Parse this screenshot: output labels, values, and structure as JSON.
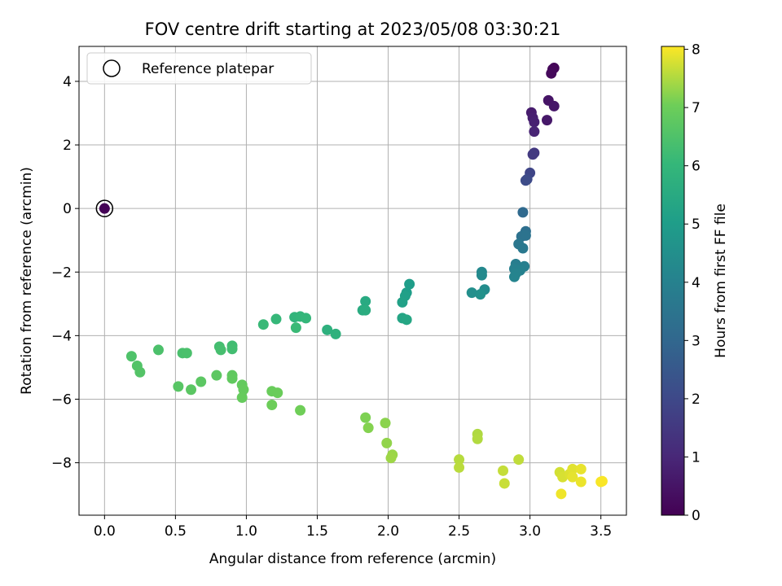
{
  "chart_data": {
    "type": "scatter",
    "title": "FOV centre drift starting at 2023/05/08 03:30:21",
    "xlabel": "Angular distance from reference (arcmin)",
    "ylabel": "Rotation from reference (arcmin)",
    "xlim": [
      -0.18,
      3.68
    ],
    "ylim": [
      -9.65,
      5.1
    ],
    "xticks": [
      "0.0",
      "0.5",
      "1.0",
      "1.5",
      "2.0",
      "2.5",
      "3.0",
      "3.5"
    ],
    "yticks": [
      "4",
      "2",
      "0",
      "−2",
      "−4",
      "−6",
      "−8"
    ],
    "grid": true,
    "legend": {
      "placement": "top-left",
      "entries": [
        "Reference platepar"
      ]
    },
    "colorbar": {
      "label": "Hours from first FF file",
      "min": 0,
      "max": 8.05,
      "ticks": [
        "0",
        "1",
        "2",
        "3",
        "4",
        "5",
        "6",
        "7",
        "8"
      ],
      "colormap": "viridis"
    },
    "reference_point": {
      "x": 0.0,
      "y": 0.0
    },
    "points": [
      {
        "x": 0.0,
        "y": 0.0,
        "h": 0.05
      },
      {
        "x": 3.17,
        "y": 4.42,
        "h": 0.1
      },
      {
        "x": 3.16,
        "y": 4.38,
        "h": 0.15
      },
      {
        "x": 3.15,
        "y": 4.25,
        "h": 0.2
      },
      {
        "x": 3.13,
        "y": 3.4,
        "h": 0.5
      },
      {
        "x": 3.17,
        "y": 3.22,
        "h": 0.55
      },
      {
        "x": 3.12,
        "y": 2.78,
        "h": 0.6
      },
      {
        "x": 3.01,
        "y": 3.02,
        "h": 0.7
      },
      {
        "x": 3.02,
        "y": 2.85,
        "h": 0.75
      },
      {
        "x": 3.03,
        "y": 2.72,
        "h": 0.8
      },
      {
        "x": 3.03,
        "y": 2.42,
        "h": 0.9
      },
      {
        "x": 3.03,
        "y": 1.75,
        "h": 1.5
      },
      {
        "x": 3.02,
        "y": 1.7,
        "h": 1.55
      },
      {
        "x": 3.0,
        "y": 1.12,
        "h": 1.9
      },
      {
        "x": 2.98,
        "y": 0.92,
        "h": 2.0
      },
      {
        "x": 2.97,
        "y": 0.88,
        "h": 2.1
      },
      {
        "x": 2.95,
        "y": -0.12,
        "h": 3.1
      },
      {
        "x": 2.97,
        "y": -0.72,
        "h": 3.3
      },
      {
        "x": 2.96,
        "y": -0.82,
        "h": 3.35
      },
      {
        "x": 2.94,
        "y": -0.88,
        "h": 3.4
      },
      {
        "x": 2.97,
        "y": -0.85,
        "h": 3.45
      },
      {
        "x": 2.92,
        "y": -1.12,
        "h": 3.6
      },
      {
        "x": 2.95,
        "y": -1.25,
        "h": 3.65
      },
      {
        "x": 2.9,
        "y": -1.75,
        "h": 3.85
      },
      {
        "x": 2.96,
        "y": -1.82,
        "h": 3.9
      },
      {
        "x": 2.89,
        "y": -1.9,
        "h": 3.95
      },
      {
        "x": 2.93,
        "y": -1.95,
        "h": 4.0
      },
      {
        "x": 2.9,
        "y": -2.05,
        "h": 4.05
      },
      {
        "x": 2.89,
        "y": -2.15,
        "h": 4.1
      },
      {
        "x": 2.66,
        "y": -2.0,
        "h": 4.25
      },
      {
        "x": 2.66,
        "y": -2.1,
        "h": 4.3
      },
      {
        "x": 2.68,
        "y": -2.55,
        "h": 4.4
      },
      {
        "x": 2.59,
        "y": -2.65,
        "h": 4.5
      },
      {
        "x": 2.65,
        "y": -2.7,
        "h": 4.55
      },
      {
        "x": 2.15,
        "y": -2.38,
        "h": 5.0
      },
      {
        "x": 2.13,
        "y": -2.65,
        "h": 5.05
      },
      {
        "x": 2.12,
        "y": -2.75,
        "h": 5.1
      },
      {
        "x": 2.1,
        "y": -2.95,
        "h": 5.15
      },
      {
        "x": 2.1,
        "y": -3.45,
        "h": 5.3
      },
      {
        "x": 2.13,
        "y": -3.5,
        "h": 5.35
      },
      {
        "x": 1.84,
        "y": -2.92,
        "h": 5.5
      },
      {
        "x": 1.82,
        "y": -3.2,
        "h": 5.55
      },
      {
        "x": 1.84,
        "y": -3.2,
        "h": 5.6
      },
      {
        "x": 1.57,
        "y": -3.82,
        "h": 5.75
      },
      {
        "x": 1.63,
        "y": -3.95,
        "h": 5.8
      },
      {
        "x": 1.34,
        "y": -3.42,
        "h": 5.9
      },
      {
        "x": 1.38,
        "y": -3.4,
        "h": 5.95
      },
      {
        "x": 1.42,
        "y": -3.45,
        "h": 6.0
      },
      {
        "x": 1.21,
        "y": -3.48,
        "h": 6.05
      },
      {
        "x": 1.12,
        "y": -3.65,
        "h": 6.1
      },
      {
        "x": 1.35,
        "y": -3.75,
        "h": 6.12
      },
      {
        "x": 0.9,
        "y": -4.32,
        "h": 6.25
      },
      {
        "x": 0.9,
        "y": -4.42,
        "h": 6.28
      },
      {
        "x": 0.81,
        "y": -4.35,
        "h": 6.3
      },
      {
        "x": 0.82,
        "y": -4.45,
        "h": 6.35
      },
      {
        "x": 0.55,
        "y": -4.55,
        "h": 6.4
      },
      {
        "x": 0.58,
        "y": -4.55,
        "h": 6.42
      },
      {
        "x": 0.38,
        "y": -4.45,
        "h": 6.45
      },
      {
        "x": 0.19,
        "y": -4.65,
        "h": 6.5
      },
      {
        "x": 0.23,
        "y": -4.95,
        "h": 6.55
      },
      {
        "x": 0.25,
        "y": -5.15,
        "h": 6.58
      },
      {
        "x": 0.52,
        "y": -5.6,
        "h": 6.65
      },
      {
        "x": 0.61,
        "y": -5.7,
        "h": 6.7
      },
      {
        "x": 0.68,
        "y": -5.45,
        "h": 6.72
      },
      {
        "x": 0.79,
        "y": -5.25,
        "h": 6.75
      },
      {
        "x": 0.9,
        "y": -5.25,
        "h": 6.8
      },
      {
        "x": 0.9,
        "y": -5.35,
        "h": 6.82
      },
      {
        "x": 0.97,
        "y": -5.55,
        "h": 6.85
      },
      {
        "x": 0.98,
        "y": -5.7,
        "h": 6.88
      },
      {
        "x": 0.97,
        "y": -5.95,
        "h": 6.9
      },
      {
        "x": 1.18,
        "y": -5.75,
        "h": 6.95
      },
      {
        "x": 1.22,
        "y": -5.8,
        "h": 6.97
      },
      {
        "x": 1.18,
        "y": -6.18,
        "h": 7.0
      },
      {
        "x": 1.38,
        "y": -6.35,
        "h": 7.05
      },
      {
        "x": 1.84,
        "y": -6.58,
        "h": 7.15
      },
      {
        "x": 1.86,
        "y": -6.9,
        "h": 7.2
      },
      {
        "x": 1.98,
        "y": -6.75,
        "h": 7.25
      },
      {
        "x": 1.99,
        "y": -7.38,
        "h": 7.3
      },
      {
        "x": 2.03,
        "y": -7.75,
        "h": 7.35
      },
      {
        "x": 2.02,
        "y": -7.85,
        "h": 7.38
      },
      {
        "x": 2.63,
        "y": -7.1,
        "h": 7.5
      },
      {
        "x": 2.63,
        "y": -7.25,
        "h": 7.52
      },
      {
        "x": 2.5,
        "y": -7.9,
        "h": 7.55
      },
      {
        "x": 2.5,
        "y": -8.15,
        "h": 7.58
      },
      {
        "x": 2.92,
        "y": -7.9,
        "h": 7.62
      },
      {
        "x": 2.81,
        "y": -8.25,
        "h": 7.65
      },
      {
        "x": 2.82,
        "y": -8.65,
        "h": 7.68
      },
      {
        "x": 3.21,
        "y": -8.3,
        "h": 7.75
      },
      {
        "x": 3.23,
        "y": -8.45,
        "h": 7.78
      },
      {
        "x": 3.28,
        "y": -8.35,
        "h": 7.82
      },
      {
        "x": 3.3,
        "y": -8.2,
        "h": 7.85
      },
      {
        "x": 3.3,
        "y": -8.45,
        "h": 7.88
      },
      {
        "x": 3.36,
        "y": -8.2,
        "h": 7.9
      },
      {
        "x": 3.36,
        "y": -8.6,
        "h": 7.92
      },
      {
        "x": 3.22,
        "y": -8.98,
        "h": 7.95
      },
      {
        "x": 3.5,
        "y": -8.6,
        "h": 8.0
      },
      {
        "x": 3.51,
        "y": -8.58,
        "h": 8.02
      }
    ]
  }
}
